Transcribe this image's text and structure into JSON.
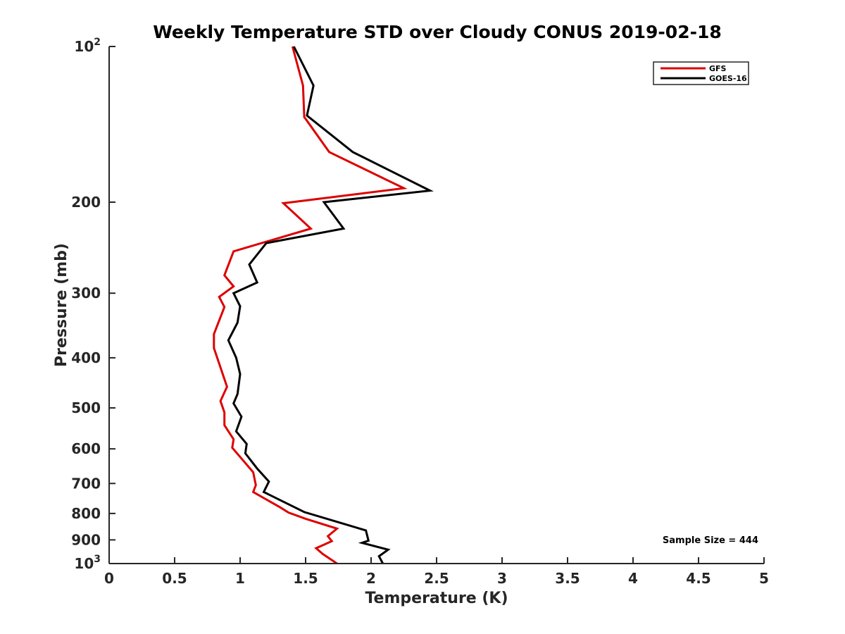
{
  "chart_data": {
    "type": "line",
    "title": "Weekly Temperature STD over Cloudy CONUS 2019-02-18",
    "xlabel": "Temperature (K)",
    "ylabel": "Pressure (mb)",
    "xlim": [
      0,
      5
    ],
    "ylim": [
      100,
      1000
    ],
    "yscale": "log",
    "y_reversed": true,
    "grid": false,
    "legend_position": "top-right",
    "x_ticks": [
      {
        "value": 0,
        "label": "0"
      },
      {
        "value": 0.5,
        "label": "0.5"
      },
      {
        "value": 1,
        "label": "1"
      },
      {
        "value": 1.5,
        "label": "1.5"
      },
      {
        "value": 2,
        "label": "2"
      },
      {
        "value": 2.5,
        "label": "2.5"
      },
      {
        "value": 3,
        "label": "3"
      },
      {
        "value": 3.5,
        "label": "3.5"
      },
      {
        "value": 4,
        "label": "4"
      },
      {
        "value": 4.5,
        "label": "4.5"
      },
      {
        "value": 5,
        "label": "5"
      }
    ],
    "y_ticks": [
      {
        "value": 100,
        "base": "10",
        "exp": "2"
      },
      {
        "value": 200,
        "label": "200"
      },
      {
        "value": 300,
        "label": "300"
      },
      {
        "value": 400,
        "label": "400"
      },
      {
        "value": 500,
        "label": "500"
      },
      {
        "value": 600,
        "label": "600"
      },
      {
        "value": 700,
        "label": "700"
      },
      {
        "value": 800,
        "label": "800"
      },
      {
        "value": 900,
        "label": "900"
      },
      {
        "value": 1000,
        "base": "10",
        "exp": "3"
      }
    ],
    "series": [
      {
        "name": "GFS",
        "color": "#dd0000",
        "x": [
          1.4,
          1.48,
          1.49,
          1.5,
          1.68,
          2.25,
          1.33,
          1.54,
          0.95,
          0.88,
          0.95,
          0.84,
          0.88,
          0.8,
          0.8,
          0.9,
          0.85,
          0.88,
          0.88,
          0.95,
          0.94,
          1.1,
          1.12,
          1.1,
          1.3,
          1.37,
          1.5,
          1.74,
          1.67,
          1.7,
          1.58,
          1.63,
          1.74
        ],
        "y": [
          100,
          119,
          137,
          138,
          160,
          188,
          201,
          225,
          249,
          277,
          291,
          305,
          319,
          360,
          383,
          455,
          485,
          510,
          540,
          575,
          597,
          666,
          705,
          727,
          777,
          797,
          819,
          856,
          885,
          905,
          934,
          958,
          1000
        ]
      },
      {
        "name": "GOES-16",
        "color": "#000000",
        "x": [
          1.41,
          1.56,
          1.51,
          1.86,
          2.45,
          1.64,
          1.79,
          1.2,
          1.07,
          1.13,
          0.95,
          1.0,
          0.98,
          0.91,
          0.97,
          1.0,
          0.98,
          0.95,
          1.01,
          0.97,
          1.05,
          1.04,
          1.13,
          1.22,
          1.18,
          1.49,
          1.96,
          1.98,
          1.93,
          2.13,
          2.06,
          2.09
        ],
        "y": [
          100,
          119,
          136,
          160,
          190,
          200,
          225,
          240,
          264,
          286,
          300,
          318,
          342,
          370,
          400,
          430,
          470,
          490,
          520,
          555,
          587,
          612,
          655,
          694,
          727,
          795,
          863,
          903,
          912,
          940,
          968,
          1000
        ]
      }
    ],
    "legend": [
      "GFS",
      "GOES-16"
    ],
    "annotation": "Sample Size = 444"
  }
}
